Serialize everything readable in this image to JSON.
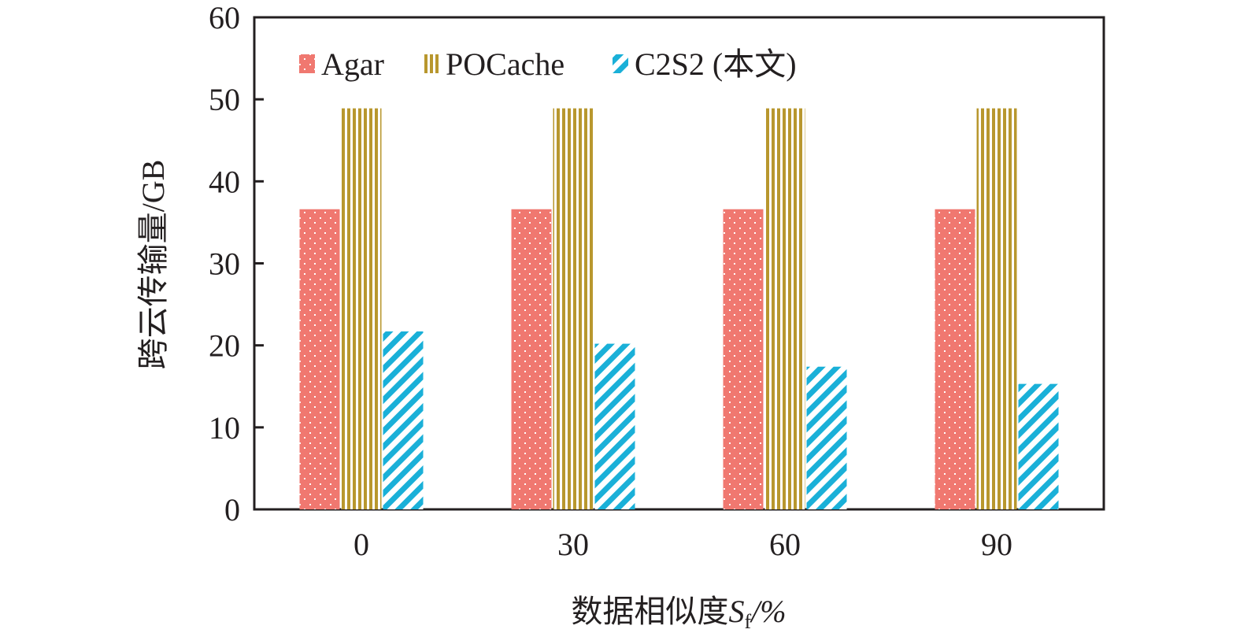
{
  "chart_data": {
    "type": "bar",
    "title": "",
    "xlabel": "数据相似度",
    "xlabel_symbol": "S",
    "xlabel_subscript": "f",
    "xlabel_unit": "/%",
    "ylabel": "跨云传输量/GB",
    "ylim": [
      0,
      60
    ],
    "yticks": [
      0,
      10,
      20,
      30,
      40,
      50,
      60
    ],
    "categories": [
      "0",
      "30",
      "60",
      "90"
    ],
    "grid": false,
    "legend_position": "top-left",
    "series": [
      {
        "name": "Agar",
        "color": "#f07870",
        "pattern": "dotted",
        "values": [
          36.6,
          36.6,
          36.6,
          36.6
        ]
      },
      {
        "name": "POCache",
        "color": "#b8972e",
        "pattern": "vertical-stripes",
        "values": [
          48.9,
          48.9,
          48.9,
          48.9
        ]
      },
      {
        "name": "C2S2 (本文)",
        "color": "#1ab0d8",
        "pattern": "diagonal-stripes",
        "values": [
          21.7,
          20.2,
          17.4,
          15.3
        ]
      }
    ]
  }
}
